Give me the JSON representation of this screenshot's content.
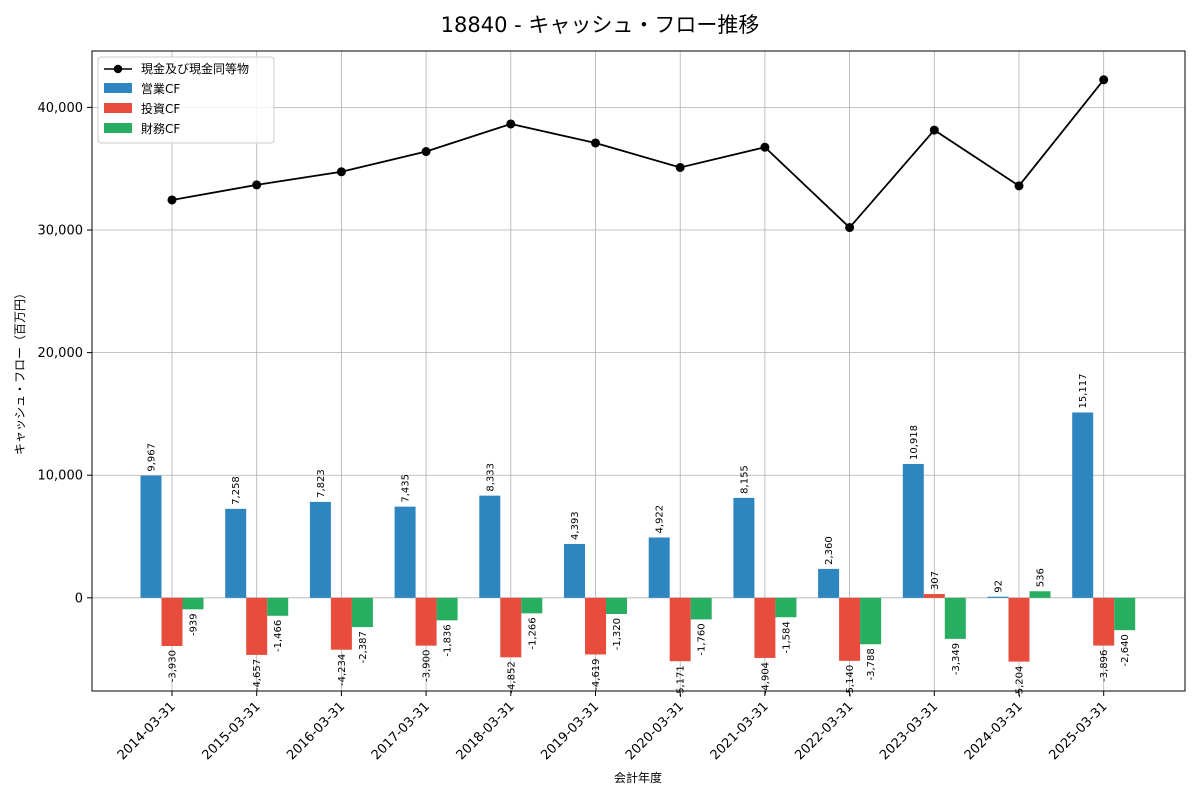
{
  "chart_data": {
    "type": "bar",
    "title": "18840 - キャッシュ・フロー推移",
    "xlabel": "会計年度",
    "ylabel": "キャッシュ・フロー（百万円）",
    "categories": [
      "2014-03-31",
      "2015-03-31",
      "2016-03-31",
      "2017-03-31",
      "2018-03-31",
      "2019-03-31",
      "2020-03-31",
      "2021-03-31",
      "2022-03-31",
      "2023-03-31",
      "2024-03-31",
      "2025-03-31"
    ],
    "bar_series": [
      {
        "name": "営業CF",
        "color": "#2e86c1",
        "values": [
          9967,
          7258,
          7823,
          7435,
          8333,
          4393,
          4922,
          8155,
          2360,
          10918,
          92,
          15117
        ],
        "labels": [
          "9,967",
          "7,258",
          "7,823",
          "7,435",
          "8,333",
          "4,393",
          "4,922",
          "8,155",
          "2,360",
          "10,918",
          "92",
          "15,117"
        ]
      },
      {
        "name": "投資CF",
        "color": "#e74c3c",
        "values": [
          -3930,
          -4657,
          -4234,
          -3900,
          -4852,
          -4619,
          -5171,
          -4904,
          -5140,
          307,
          -5204,
          -3896
        ],
        "labels": [
          "-3,930",
          "-4,657",
          "-4,234",
          "-3,900",
          "-4,852",
          "-4,619",
          "-5,171",
          "-4,904",
          "-5,140",
          "307",
          "-5,204",
          "-3,896"
        ]
      },
      {
        "name": "財務CF",
        "color": "#27ae60",
        "values": [
          -939,
          -1466,
          -2387,
          -1836,
          -1266,
          -1320,
          -1760,
          -1584,
          -3788,
          -3349,
          536,
          -2640
        ],
        "labels": [
          "-939",
          "-1,466",
          "-2,387",
          "-1,836",
          "-1,266",
          "-1,320",
          "-1,760",
          "-1,584",
          "-3,788",
          "-3,349",
          "536",
          "-2,640"
        ]
      }
    ],
    "line_series": {
      "name": "現金及び現金同等物",
      "color": "#000000",
      "values": [
        32450,
        33680,
        34750,
        36400,
        38650,
        37100,
        35100,
        36750,
        30200,
        38150,
        33600,
        42250
      ]
    },
    "yticks": [
      0,
      10000,
      20000,
      30000,
      40000
    ],
    "ytick_labels": [
      "0",
      "10,000",
      "20,000",
      "30,000",
      "40,000"
    ],
    "ylim": [
      -7600,
      44600
    ],
    "grid": true,
    "legend_position": "top-left"
  }
}
